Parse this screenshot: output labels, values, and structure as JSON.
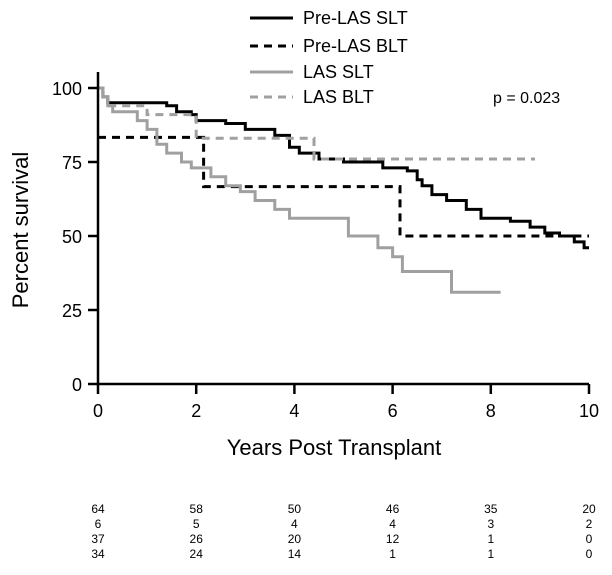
{
  "chart_data": {
    "type": "line",
    "subtype": "kaplan-meier",
    "title": "",
    "xlabel": "Years Post Transplant",
    "ylabel": "Percent survival",
    "xlim": [
      0,
      10
    ],
    "ylim": [
      0,
      100
    ],
    "xticks": [
      0,
      2,
      4,
      6,
      8,
      10
    ],
    "yticks": [
      0,
      25,
      50,
      75,
      100
    ],
    "annotation": "p = 0.023",
    "legend_position": "top",
    "series": [
      {
        "name": "Pre-LAS SLT",
        "color": "#000000",
        "dashed": false,
        "steps": [
          [
            0,
            100
          ],
          [
            0.1,
            97
          ],
          [
            0.2,
            95
          ],
          [
            1.4,
            94
          ],
          [
            1.6,
            92
          ],
          [
            1.9,
            91
          ],
          [
            2.0,
            89
          ],
          [
            2.6,
            88
          ],
          [
            3.0,
            86
          ],
          [
            3.6,
            84
          ],
          [
            3.9,
            80
          ],
          [
            4.1,
            78
          ],
          [
            4.5,
            76
          ],
          [
            5.0,
            75
          ],
          [
            5.8,
            73
          ],
          [
            6.3,
            72
          ],
          [
            6.5,
            69
          ],
          [
            6.6,
            67
          ],
          [
            6.8,
            64
          ],
          [
            7.1,
            62
          ],
          [
            7.5,
            59
          ],
          [
            7.8,
            56
          ],
          [
            8.4,
            55
          ],
          [
            8.8,
            53
          ],
          [
            9.1,
            51
          ],
          [
            9.4,
            50
          ],
          [
            9.7,
            48
          ],
          [
            9.9,
            46
          ],
          [
            10.0,
            46
          ]
        ]
      },
      {
        "name": "Pre-LAS BLT",
        "color": "#000000",
        "dashed": true,
        "steps": [
          [
            0,
            83.3
          ],
          [
            2.15,
            66.7
          ],
          [
            6.15,
            50
          ],
          [
            10.0,
            50
          ]
        ]
      },
      {
        "name": "LAS SLT",
        "color": "#a0a0a0",
        "dashed": false,
        "steps": [
          [
            0,
            100
          ],
          [
            0.1,
            97
          ],
          [
            0.2,
            94
          ],
          [
            0.3,
            92
          ],
          [
            0.8,
            89
          ],
          [
            1.0,
            86
          ],
          [
            1.2,
            81
          ],
          [
            1.4,
            78
          ],
          [
            1.7,
            75
          ],
          [
            1.9,
            73
          ],
          [
            2.3,
            70
          ],
          [
            2.6,
            67
          ],
          [
            2.9,
            65
          ],
          [
            3.2,
            62
          ],
          [
            3.6,
            59
          ],
          [
            3.9,
            56
          ],
          [
            5.1,
            50
          ],
          [
            5.7,
            46
          ],
          [
            6.0,
            43
          ],
          [
            6.2,
            38
          ],
          [
            7.2,
            31
          ],
          [
            8.2,
            31
          ]
        ]
      },
      {
        "name": "LAS BLT",
        "color": "#a0a0a0",
        "dashed": true,
        "steps": [
          [
            0,
            100
          ],
          [
            0.1,
            97
          ],
          [
            0.2,
            94
          ],
          [
            1.0,
            91
          ],
          [
            2.0,
            83
          ],
          [
            4.4,
            76
          ],
          [
            8.9,
            76
          ]
        ]
      }
    ],
    "number_at_risk": {
      "times": [
        0,
        2,
        4,
        6,
        8,
        10
      ],
      "rows": [
        [
          "64",
          "58",
          "50",
          "46",
          "35",
          "20"
        ],
        [
          "6",
          "5",
          "4",
          "4",
          "3",
          "2"
        ],
        [
          "37",
          "26",
          "20",
          "12",
          "1",
          "0"
        ],
        [
          "34",
          "24",
          "14",
          "1",
          "1",
          "0"
        ]
      ]
    }
  }
}
